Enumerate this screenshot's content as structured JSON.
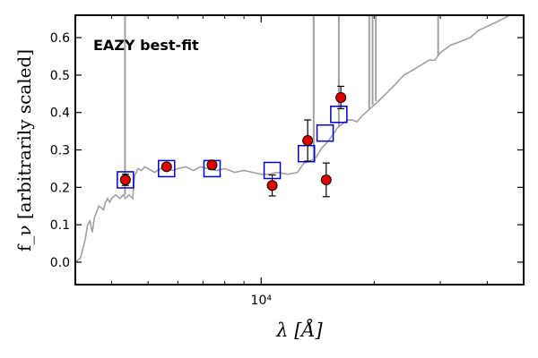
{
  "chart_data": {
    "type": "scatter",
    "xlabel": "λ [Å]",
    "ylabel": "f_ν [arbitrarily scaled]",
    "x_scale": "log",
    "xlim": [
      3200,
      50000
    ],
    "ylim": [
      -0.06,
      0.66
    ],
    "x_tick_labels": [
      {
        "value": 10000,
        "label": "10⁴"
      }
    ],
    "x_minor_ticks": [
      4000,
      5000,
      6000,
      7000,
      8000,
      9000,
      20000,
      30000,
      40000
    ],
    "y_ticks": [
      0.0,
      0.1,
      0.2,
      0.3,
      0.4,
      0.5,
      0.6
    ],
    "y_tick_labels": [
      "0.0",
      "0.1",
      "0.2",
      "0.3",
      "0.4",
      "0.5",
      "0.6"
    ],
    "grid": false,
    "annotation": {
      "text": "EAZY best-fit",
      "color": "#ff0000"
    },
    "series": [
      {
        "kind": "template_spectrum",
        "color": "#a0a0a0",
        "points": [
          [
            3200,
            0.0
          ],
          [
            3300,
            0.01
          ],
          [
            3400,
            0.06
          ],
          [
            3450,
            0.1
          ],
          [
            3500,
            0.11
          ],
          [
            3550,
            0.08
          ],
          [
            3600,
            0.12
          ],
          [
            3700,
            0.15
          ],
          [
            3800,
            0.14
          ],
          [
            3850,
            0.16
          ],
          [
            3900,
            0.17
          ],
          [
            3950,
            0.16
          ],
          [
            4000,
            0.17
          ],
          [
            4100,
            0.18
          ],
          [
            4200,
            0.17
          ],
          [
            4300,
            0.18
          ],
          [
            4350,
            0.17
          ],
          [
            4400,
            0.175
          ],
          [
            4450,
            0.18
          ],
          [
            4500,
            0.175
          ],
          [
            4550,
            0.17
          ],
          [
            4600,
            0.23
          ],
          [
            4700,
            0.25
          ],
          [
            4800,
            0.245
          ],
          [
            4900,
            0.255
          ],
          [
            5000,
            0.25
          ],
          [
            5100,
            0.245
          ],
          [
            5200,
            0.24
          ],
          [
            5400,
            0.25
          ],
          [
            5600,
            0.255
          ],
          [
            5800,
            0.245
          ],
          [
            6000,
            0.25
          ],
          [
            6300,
            0.255
          ],
          [
            6600,
            0.245
          ],
          [
            6900,
            0.255
          ],
          [
            7200,
            0.25
          ],
          [
            7600,
            0.245
          ],
          [
            8000,
            0.25
          ],
          [
            8500,
            0.24
          ],
          [
            9000,
            0.245
          ],
          [
            9500,
            0.24
          ],
          [
            10000,
            0.235
          ],
          [
            10500,
            0.235
          ],
          [
            11000,
            0.24
          ],
          [
            11800,
            0.235
          ],
          [
            12500,
            0.24
          ],
          [
            13000,
            0.265
          ],
          [
            13500,
            0.27
          ],
          [
            14000,
            0.28
          ],
          [
            14500,
            0.305
          ],
          [
            15000,
            0.32
          ],
          [
            15500,
            0.34
          ],
          [
            16000,
            0.36
          ],
          [
            16500,
            0.37
          ],
          [
            17000,
            0.38
          ],
          [
            17500,
            0.38
          ],
          [
            18000,
            0.375
          ],
          [
            18500,
            0.39
          ],
          [
            19000,
            0.4
          ],
          [
            20000,
            0.42
          ],
          [
            21000,
            0.44
          ],
          [
            22000,
            0.46
          ],
          [
            23000,
            0.48
          ],
          [
            24000,
            0.5
          ],
          [
            25000,
            0.51
          ],
          [
            26000,
            0.52
          ],
          [
            27000,
            0.53
          ],
          [
            28000,
            0.54
          ],
          [
            29000,
            0.54
          ],
          [
            30000,
            0.56
          ],
          [
            32000,
            0.58
          ],
          [
            34000,
            0.59
          ],
          [
            36000,
            0.6
          ],
          [
            38000,
            0.62
          ],
          [
            40000,
            0.63
          ],
          [
            42000,
            0.64
          ],
          [
            44000,
            0.65
          ],
          [
            46000,
            0.66
          ],
          [
            48000,
            0.66
          ],
          [
            50000,
            0.66
          ]
        ],
        "emission_lines": [
          {
            "x": 4340,
            "base": 0.18
          },
          {
            "x": 13800,
            "base": 0.27
          },
          {
            "x": 16100,
            "base": 0.36
          },
          {
            "x": 19400,
            "base": 0.41
          },
          {
            "x": 19800,
            "base": 0.42
          },
          {
            "x": 20200,
            "base": 0.43
          },
          {
            "x": 29600,
            "base": 0.55
          }
        ]
      },
      {
        "kind": "template_photometry",
        "marker": "square",
        "color": "#0000cc",
        "x": [
          4350,
          5600,
          7400,
          10700,
          13200,
          14800,
          16100
        ],
        "y": [
          0.22,
          0.25,
          0.25,
          0.245,
          0.29,
          0.345,
          0.395
        ]
      },
      {
        "kind": "observed_photometry",
        "marker": "circle",
        "color": "#e00000",
        "x": [
          4350,
          5600,
          7400,
          10700,
          13300,
          14900,
          16300
        ],
        "y": [
          0.22,
          0.255,
          0.26,
          0.205,
          0.325,
          0.22,
          0.44
        ],
        "yerr": [
          0.015,
          0.008,
          0.012,
          0.028,
          0.055,
          0.045,
          0.03
        ]
      }
    ]
  }
}
